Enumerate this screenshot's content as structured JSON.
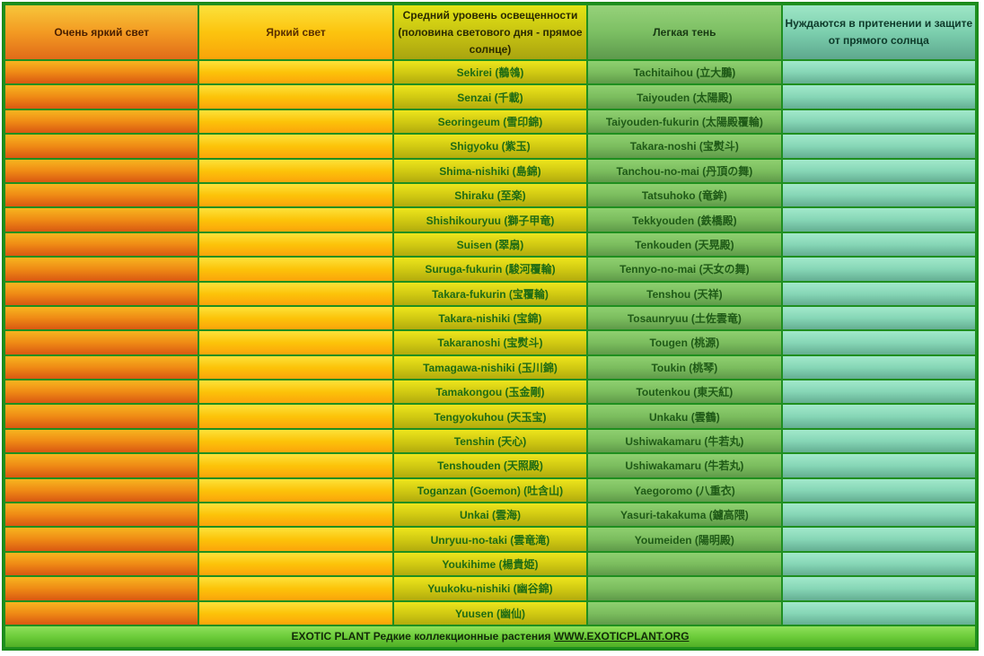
{
  "headers": {
    "col1": "Очень яркий свет",
    "col2": "Яркий свет",
    "col3": "Средний уровень освещенности (половина светового дня - прямое солнце)",
    "col4": "Легкая тень",
    "col5": "Нуждаются в притенении и защите от прямого солнца"
  },
  "rows": [
    {
      "c3": "Sekirei (鶺鴒)",
      "c4": "Tachitaihou (立大鵬)"
    },
    {
      "c3": "Senzai (千載)",
      "c4": "Taiyouden (太陽殿)"
    },
    {
      "c3": "Seoringeum (雪印錦)",
      "c4": "Taiyouden-fukurin (太陽殿覆輪)"
    },
    {
      "c3": "Shigyoku (紫玉)",
      "c4": "Takara-noshi (宝熨斗)"
    },
    {
      "c3": "Shima-nishiki (島錦)",
      "c4": "Tanchou-no-mai (丹頂の舞)"
    },
    {
      "c3": "Shiraku (至楽)",
      "c4": "Tatsuhoko (竜鉾)"
    },
    {
      "c3": "Shishikouryuu (獅子甲竜)",
      "c4": "Tekkyouden (鉄橋殿)"
    },
    {
      "c3": "Suisen (翠扇)",
      "c4": "Tenkouden (天晃殿)"
    },
    {
      "c3": "Suruga-fukurin (駿河覆輪)",
      "c4": "Tennyo-no-mai (天女の舞)"
    },
    {
      "c3": "Takara-fukurin (宝覆輪)",
      "c4": "Tenshou (天祥)"
    },
    {
      "c3": "Takara-nishiki (宝錦)",
      "c4": "Tosaunryuu (土佐雲竜)"
    },
    {
      "c3": "Takaranoshi (宝熨斗)",
      "c4": "Tougen (桃源)"
    },
    {
      "c3": "Tamagawa-nishiki (玉川錦)",
      "c4": "Toukin (桃琴)"
    },
    {
      "c3": "Tamakongou (玉金剛)",
      "c4": "Toutenkou (東天紅)"
    },
    {
      "c3": "Tengyokuhou (天玉宝)",
      "c4": "Unkaku (雲鶴)"
    },
    {
      "c3": "Tenshin (天心)",
      "c4": "Ushiwakamaru (牛若丸)"
    },
    {
      "c3": "Tenshouden (天照殿)",
      "c4": "Ushiwakamaru (牛若丸)"
    },
    {
      "c3": "Toganzan (Goemon) (吐含山)",
      "c4": "Yaegoromo (八重衣)"
    },
    {
      "c3": "Unkai (雲海)",
      "c4": "Yasuri-takakuma (鑢高隈)"
    },
    {
      "c3": "Unryuu-no-taki (雲竜滝)",
      "c4": "Youmeiden (陽明殿)"
    },
    {
      "c3": "Youkihime (楊貴姫)",
      "c4": ""
    },
    {
      "c3": "Yuukoku-nishiki (幽谷錦)",
      "c4": ""
    },
    {
      "c3": "Yuusen (幽仙)",
      "c4": ""
    }
  ],
  "footer": {
    "text": "EXOTIC PLANT Редкие коллекционные растения",
    "link": "WWW.EXOTICPLANT.ORG"
  }
}
